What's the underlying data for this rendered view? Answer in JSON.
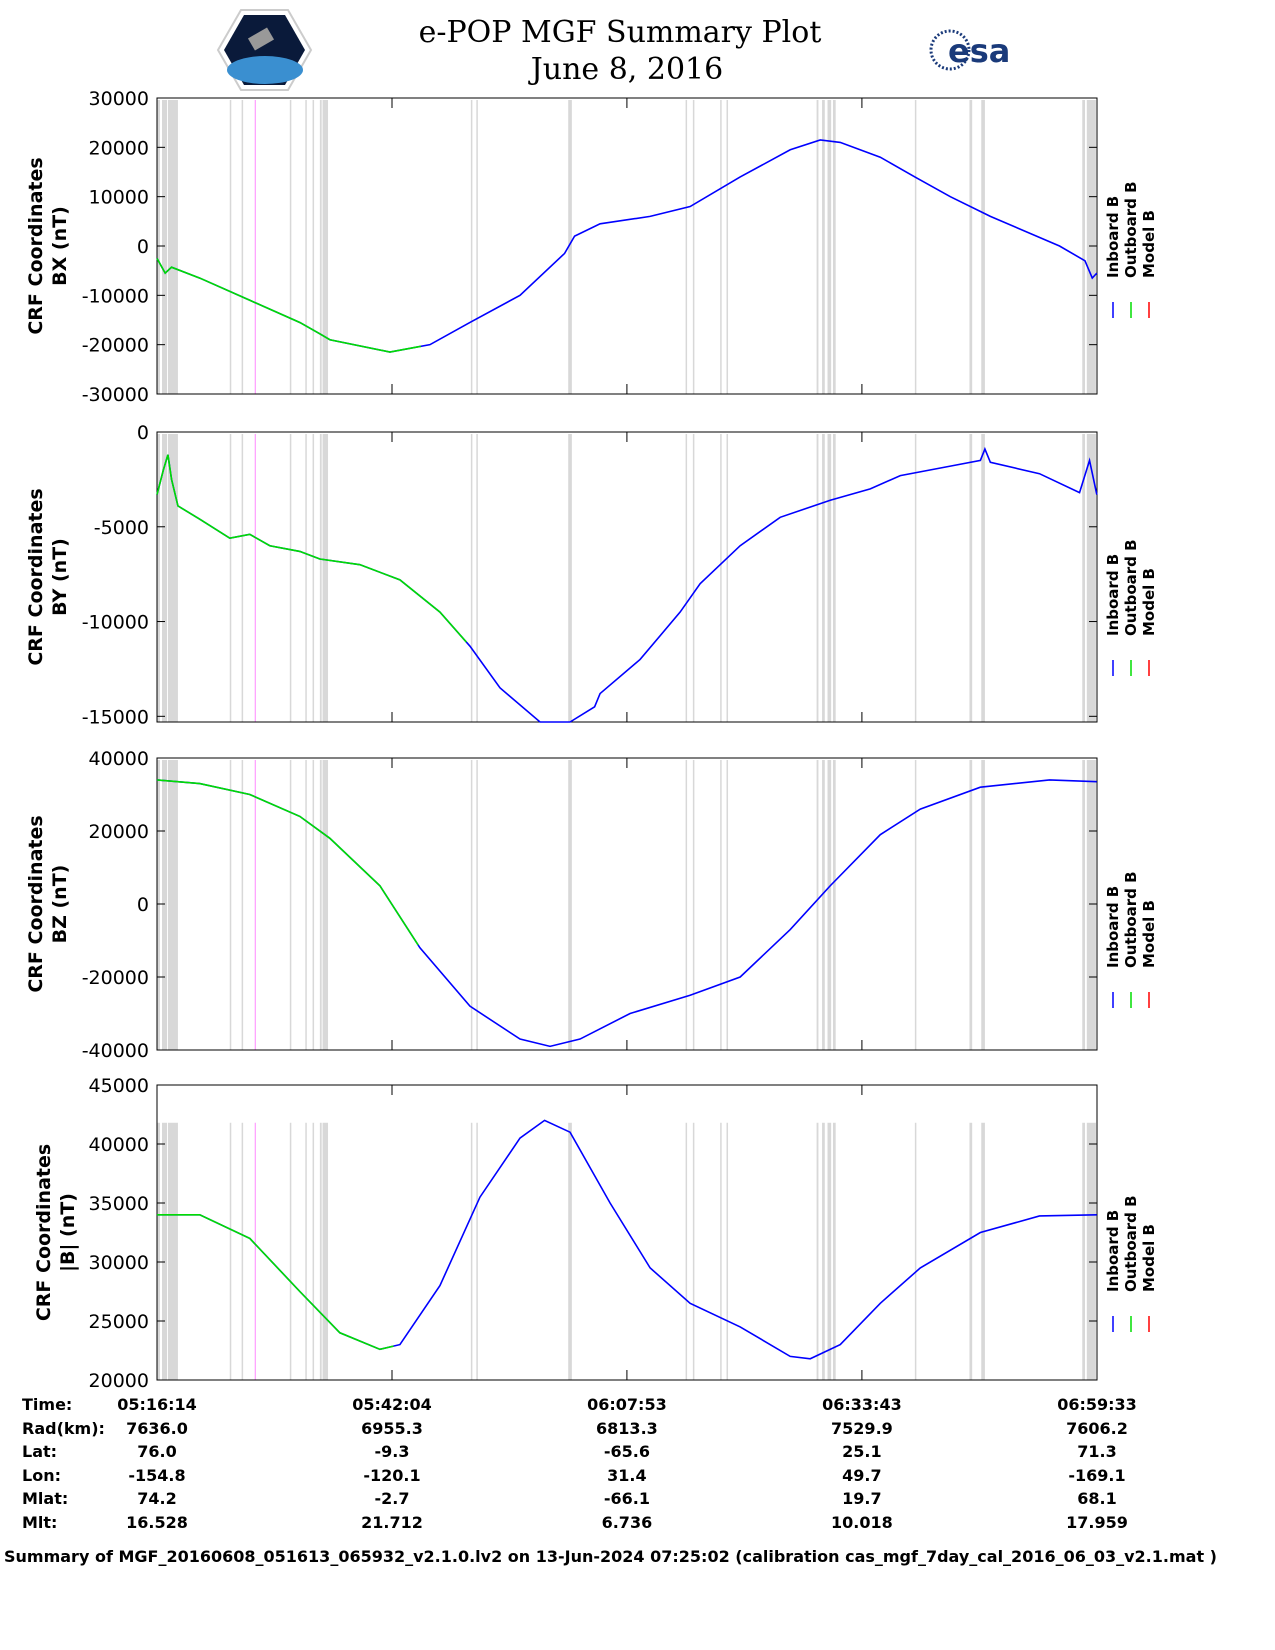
{
  "header": {
    "title": "e-POP MGF Summary Plot",
    "date": "June 8, 2016",
    "logo_left": "CASSIOPE",
    "logo_right": "esa"
  },
  "colors": {
    "inboard": "#0000ff",
    "outboard": "#00dd00",
    "model": "#ff0000",
    "gap": "#d8d8d8",
    "event": "#ff88ff"
  },
  "legend": [
    "Inboard B",
    "Outboard B",
    "Model B"
  ],
  "chart_data": [
    {
      "type": "line",
      "ylabel": [
        "CRF Coordinates",
        "BX (nT)"
      ],
      "ylim": [
        -30000,
        30000
      ],
      "yticks": [
        "30000",
        "20000",
        "10000",
        "0",
        "-10000",
        "-20000",
        "-30000"
      ],
      "ytick_values": [
        30000,
        20000,
        10000,
        0,
        -10000,
        -20000,
        -30000
      ],
      "outboard_end_min": 29,
      "x": [
        0,
        0.9,
        1.6,
        4.7,
        10.2,
        15.7,
        17.9,
        19.0,
        25.6,
        30.0,
        34.4,
        39.9,
        44.8,
        45.9,
        48.7,
        54.2,
        58.6,
        64.1,
        69.6,
        72.9,
        75.1,
        79.5,
        83.3,
        87.2,
        91.6,
        99.2,
        102.0,
        102.8,
        103.3
      ],
      "y": [
        -2500,
        -5500,
        -4300,
        -6500,
        -11000,
        -15500,
        -17800,
        -19000,
        -21500,
        -20000,
        -15500,
        -10000,
        -1500,
        2000,
        4500,
        6000,
        8000,
        14000,
        19500,
        21500,
        21000,
        18000,
        14000,
        10000,
        6000,
        0,
        -3000,
        -6500,
        -5500
      ]
    },
    {
      "type": "line",
      "ylabel": [
        "CRF Coordinates",
        "BY (nT)"
      ],
      "ylim": [
        -15300,
        0
      ],
      "yticks": [
        "0",
        "-5000",
        "-10000",
        "-15000"
      ],
      "ytick_values": [
        0,
        -5000,
        -10000,
        -15000
      ],
      "outboard_end_min": 34,
      "x": [
        0,
        0.7,
        1.2,
        1.6,
        2.3,
        4.7,
        8.0,
        10.2,
        12.4,
        15.7,
        17.9,
        22.3,
        26.7,
        31.1,
        34.4,
        37.7,
        42.1,
        45.4,
        48.1,
        48.7,
        53.1,
        57.5,
        59.7,
        64.1,
        68.5,
        74.0,
        78.4,
        81.7,
        87.2,
        90.5,
        91.0,
        91.6,
        97.0,
        101.4,
        102.5,
        103.3
      ],
      "y": [
        -3300,
        -2000,
        -1200,
        -2500,
        -3900,
        -4600,
        -5600,
        -5400,
        -6000,
        -6300,
        -6700,
        -7000,
        -7800,
        -9500,
        -11300,
        -13500,
        -15300,
        -15300,
        -14500,
        -13800,
        -12000,
        -9500,
        -8000,
        -6000,
        -4500,
        -3600,
        -3000,
        -2300,
        -1800,
        -1500,
        -900,
        -1600,
        -2200,
        -3200,
        -1500,
        -3300
      ]
    },
    {
      "type": "line",
      "ylabel": [
        "CRF Coordinates",
        "BZ (nT)"
      ],
      "ylim": [
        -40000,
        40000
      ],
      "yticks": [
        "40000",
        "20000",
        "0",
        "-20000",
        "-40000"
      ],
      "ytick_values": [
        40000,
        20000,
        0,
        -20000,
        -40000
      ],
      "outboard_end_min": 28.7,
      "x": [
        0,
        4.7,
        10.2,
        15.7,
        19.0,
        24.5,
        28.9,
        34.4,
        39.9,
        43.2,
        46.5,
        52.0,
        58.6,
        64.1,
        69.6,
        74.0,
        79.5,
        83.9,
        90.5,
        98.1,
        103.3
      ],
      "y": [
        34000,
        33000,
        30000,
        24000,
        18000,
        5000,
        -12000,
        -28000,
        -37000,
        -39000,
        -37000,
        -30000,
        -25000,
        -20000,
        -7000,
        5000,
        19000,
        26000,
        32000,
        34000,
        33500
      ]
    },
    {
      "type": "line",
      "ylabel": [
        "CRF Coordinates",
        "|B| (nT)"
      ],
      "ylim": [
        20000,
        45000
      ],
      "yticks": [
        "45000",
        "40000",
        "35000",
        "30000",
        "25000",
        "20000"
      ],
      "ytick_values": [
        45000,
        40000,
        35000,
        30000,
        25000,
        20000
      ],
      "outboard_end_min": 26,
      "x": [
        0,
        4.7,
        10.2,
        15.7,
        20.1,
        24.5,
        26.7,
        31.1,
        35.5,
        39.9,
        42.6,
        45.4,
        49.8,
        54.2,
        58.6,
        64.1,
        69.6,
        71.8,
        75.1,
        79.5,
        83.9,
        90.5,
        97.0,
        103.3
      ],
      "y": [
        34000,
        34000,
        32000,
        27500,
        24000,
        22600,
        23000,
        28000,
        35500,
        40500,
        42000,
        41000,
        35000,
        29500,
        26500,
        24500,
        22000,
        21800,
        23000,
        26500,
        29500,
        32500,
        33900,
        34000
      ]
    }
  ],
  "time_axis": {
    "xlim_min": [
      0,
      103.32
    ],
    "tick_min": [
      0,
      25.83,
      51.65,
      77.48,
      103.32
    ]
  },
  "data_gaps_min": [
    [
      0,
      0.33
    ],
    [
      0.55,
      1.1
    ],
    [
      1.2,
      2.3
    ],
    [
      8.0,
      8.1
    ],
    [
      9.3,
      9.4
    ],
    [
      14.6,
      14.7
    ],
    [
      16.3,
      16.4
    ],
    [
      17.1,
      17.2
    ],
    [
      17.9,
      18.1
    ],
    [
      18.2,
      18.8
    ],
    [
      34.5,
      34.6
    ],
    [
      35.1,
      35.2
    ],
    [
      45.2,
      45.6
    ],
    [
      58.1,
      58.2
    ],
    [
      58.9,
      59.0
    ],
    [
      61.9,
      62.0
    ],
    [
      62.6,
      62.7
    ],
    [
      72.5,
      72.7
    ],
    [
      73.1,
      73.4
    ],
    [
      73.7,
      74.1
    ],
    [
      74.3,
      74.6
    ],
    [
      83.3,
      83.4
    ],
    [
      89.3,
      89.6
    ],
    [
      90.6,
      91.0
    ],
    [
      101.7,
      102.0
    ],
    [
      102.2,
      103.2
    ]
  ],
  "event_min": [
    10.8
  ],
  "table": {
    "labels": [
      "Time:",
      "Rad(km):",
      "Lat:",
      "Lon:",
      "Mlat:",
      "Mlt:"
    ],
    "columns": [
      [
        "05:16:14",
        "7636.0",
        "76.0",
        "-154.8",
        "74.2",
        "16.528"
      ],
      [
        "05:42:04",
        "6955.3",
        "-9.3",
        "-120.1",
        "-2.7",
        "21.712"
      ],
      [
        "06:07:53",
        "6813.3",
        "-65.6",
        "31.4",
        "-66.1",
        "6.736"
      ],
      [
        "06:33:43",
        "7529.9",
        "25.1",
        "49.7",
        "19.7",
        "10.018"
      ],
      [
        "06:59:33",
        "7606.2",
        "71.3",
        "-169.1",
        "68.1",
        "17.959"
      ]
    ]
  },
  "footer": "Summary of MGF_20160608_051613_065932_v2.1.0.lv2 on 13-Jun-2024 07:25:02 (calibration cas_mgf_7day_cal_2016_06_03_v2.1.mat )"
}
